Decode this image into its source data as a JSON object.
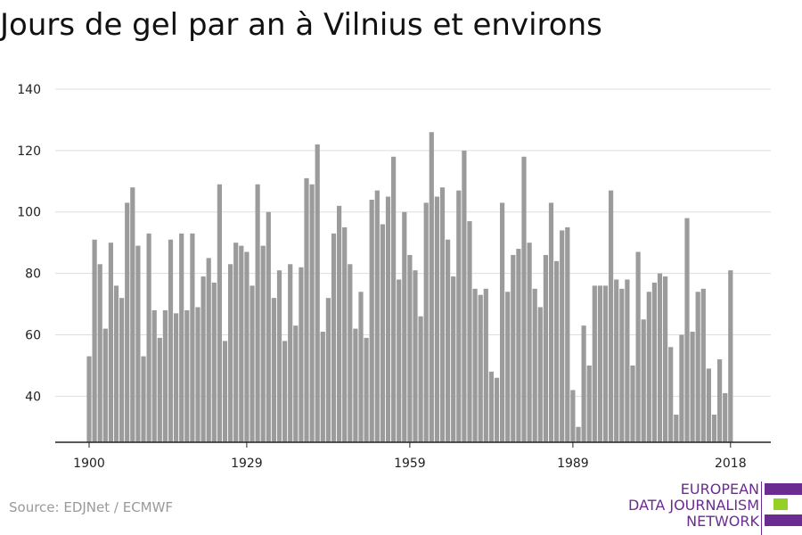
{
  "chart_data": {
    "type": "bar",
    "title": "Jours de gel par an à Vilnius et environs",
    "xlabel": "",
    "ylabel": "",
    "ylim": [
      25,
      140
    ],
    "yticks": [
      40,
      60,
      80,
      100,
      120,
      140
    ],
    "xticks": [
      1900,
      1929,
      1959,
      1989,
      2018
    ],
    "grid": true,
    "x": [
      1900,
      1901,
      1902,
      1903,
      1904,
      1905,
      1906,
      1907,
      1908,
      1909,
      1910,
      1911,
      1912,
      1913,
      1914,
      1915,
      1916,
      1917,
      1918,
      1919,
      1920,
      1921,
      1922,
      1923,
      1924,
      1925,
      1926,
      1927,
      1928,
      1929,
      1930,
      1931,
      1932,
      1933,
      1934,
      1935,
      1936,
      1937,
      1938,
      1939,
      1940,
      1941,
      1942,
      1943,
      1944,
      1945,
      1946,
      1947,
      1948,
      1949,
      1950,
      1951,
      1952,
      1953,
      1954,
      1955,
      1956,
      1957,
      1958,
      1959,
      1960,
      1961,
      1962,
      1963,
      1964,
      1965,
      1966,
      1967,
      1968,
      1969,
      1970,
      1971,
      1972,
      1973,
      1974,
      1975,
      1976,
      1977,
      1978,
      1979,
      1980,
      1981,
      1982,
      1983,
      1984,
      1985,
      1986,
      1987,
      1988,
      1989,
      1990,
      1991,
      1992,
      1993,
      1994,
      1995,
      1996,
      1997,
      1998,
      1999,
      2000,
      2001,
      2002,
      2003,
      2004,
      2005,
      2006,
      2007,
      2008,
      2009,
      2010,
      2011,
      2012,
      2013,
      2014,
      2015,
      2016,
      2017,
      2018
    ],
    "values": [
      53,
      91,
      83,
      62,
      90,
      76,
      72,
      103,
      108,
      89,
      53,
      93,
      68,
      59,
      68,
      91,
      67,
      93,
      68,
      93,
      69,
      79,
      85,
      77,
      109,
      58,
      83,
      90,
      89,
      87,
      76,
      109,
      89,
      100,
      72,
      81,
      58,
      83,
      63,
      82,
      111,
      109,
      122,
      61,
      72,
      93,
      102,
      95,
      83,
      62,
      74,
      59,
      104,
      107,
      96,
      105,
      118,
      78,
      100,
      86,
      81,
      66,
      103,
      126,
      105,
      108,
      91,
      79,
      107,
      120,
      97,
      75,
      73,
      75,
      48,
      46,
      103,
      74,
      86,
      88,
      118,
      90,
      75,
      69,
      86,
      103,
      84,
      94,
      95,
      42,
      30,
      63,
      50,
      76,
      76,
      76,
      107,
      78,
      75,
      78,
      50,
      87,
      65,
      74,
      77,
      80,
      79,
      56,
      34,
      60,
      98,
      61,
      74,
      75,
      49,
      34,
      52,
      41,
      81
    ],
    "bar_color": "#9b9b9b"
  },
  "source": "Source: EDJNet / ECMWF",
  "logo": {
    "lines": [
      "EUROPEAN",
      "DATA JOURNALISM",
      "NETWORK"
    ],
    "text_color": "#6a2c91",
    "bar_colors": [
      "#6a2c91",
      "#95d125",
      "#6a2c91"
    ]
  }
}
